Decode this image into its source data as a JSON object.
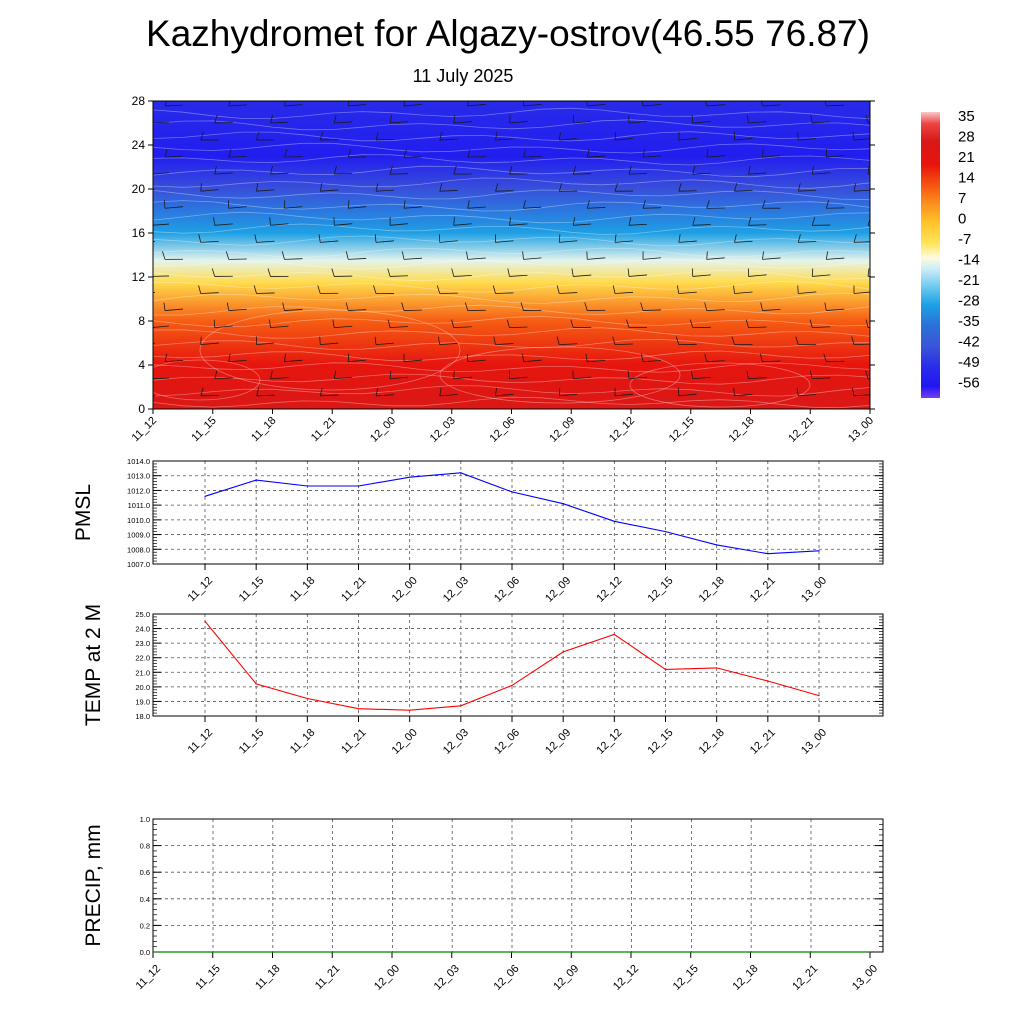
{
  "title": "Kazhydromet for Algazy-ostrov(46.55 76.87)",
  "subtitle": "11 July 2025",
  "chart_data": [
    {
      "type": "heatmap",
      "name": "temperature-wind-cross-section",
      "x_ticks": [
        "11_12",
        "11_15",
        "11_18",
        "11_21",
        "12_00",
        "12_03",
        "12_06",
        "12_09",
        "12_12",
        "12_15",
        "12_18",
        "12_21",
        "13_00"
      ],
      "ylim": [
        0,
        28
      ],
      "y_ticks": [
        0,
        4,
        8,
        12,
        16,
        20,
        24,
        28
      ],
      "colorbar_labels": [
        "35",
        "28",
        "21",
        "14",
        "7",
        "0",
        "-7",
        "-14",
        "-21",
        "-28",
        "-35",
        "-42",
        "-49",
        "-56"
      ],
      "colorbar_stops": [
        {
          "v": 38,
          "color": "#f9c8c8"
        },
        {
          "v": 34,
          "color": "#ee4444"
        },
        {
          "v": 28,
          "color": "#d81818"
        },
        {
          "v": 20,
          "color": "#e8140c"
        },
        {
          "v": 14,
          "color": "#f44a10"
        },
        {
          "v": 7,
          "color": "#fb8c1c"
        },
        {
          "v": 0,
          "color": "#ffc42a"
        },
        {
          "v": -7,
          "color": "#ffe45a"
        },
        {
          "v": -12,
          "color": "#fffbe0"
        },
        {
          "v": -16,
          "color": "#c9ecf8"
        },
        {
          "v": -22,
          "color": "#6cc9f0"
        },
        {
          "v": -28,
          "color": "#1ea0e4"
        },
        {
          "v": -35,
          "color": "#2a72d8"
        },
        {
          "v": -42,
          "color": "#3a56d8"
        },
        {
          "v": -49,
          "color": "#2a2ee8"
        },
        {
          "v": -56,
          "color": "#1f16f2"
        },
        {
          "v": -60,
          "color": "#7a3cf0"
        }
      ],
      "temperature_profile": [
        {
          "h": 0,
          "t": 27
        },
        {
          "h": 4,
          "t": 21
        },
        {
          "h": 8,
          "t": 12
        },
        {
          "h": 11.5,
          "t": -5
        },
        {
          "h": 13.5,
          "t": -14
        },
        {
          "h": 16,
          "t": -28
        },
        {
          "h": 20,
          "t": -43
        },
        {
          "h": 23,
          "t": -54
        },
        {
          "h": 28,
          "t": -50
        }
      ],
      "wind_barbs": true
    },
    {
      "type": "line",
      "name": "pmsl",
      "ylabel": "PMSL",
      "ylim": [
        1007.0,
        1014.0
      ],
      "y_ticks": [
        "1007.0",
        "1008.0",
        "1009.0",
        "1010.0",
        "1011.0",
        "1012.0",
        "1013.0",
        "1014.0"
      ],
      "x_ticks": [
        "11_12",
        "11_15",
        "11_18",
        "11_21",
        "12_00",
        "12_03",
        "12_06",
        "12_09",
        "12_12",
        "12_15",
        "12_18",
        "12_21",
        "13_00"
      ],
      "values": [
        1011.6,
        1012.7,
        1012.3,
        1012.3,
        1012.9,
        1013.2,
        1011.9,
        1011.1,
        1009.9,
        1009.2,
        1008.3,
        1007.7,
        1007.9
      ],
      "color": "#0000ff",
      "grid": true
    },
    {
      "type": "line",
      "name": "temp-2m",
      "ylabel": "TEMP at 2 M",
      "ylim": [
        18.0,
        25.0
      ],
      "y_ticks": [
        "18.0",
        "19.0",
        "20.0",
        "21.0",
        "22.0",
        "23.0",
        "24.0",
        "25.0"
      ],
      "x_ticks": [
        "11_12",
        "11_15",
        "11_18",
        "11_21",
        "12_00",
        "12_03",
        "12_06",
        "12_09",
        "12_12",
        "12_15",
        "12_18",
        "12_21",
        "13_00"
      ],
      "values": [
        24.5,
        20.2,
        19.2,
        18.5,
        18.4,
        18.7,
        20.1,
        22.4,
        23.6,
        21.2,
        21.3,
        20.4,
        19.4
      ],
      "color": "#ff0000",
      "grid": true
    },
    {
      "type": "line",
      "name": "precip",
      "ylabel": "PRECIP, mm",
      "ylim": [
        0.0,
        1.0
      ],
      "y_ticks": [
        "0.0",
        "0.2",
        "0.4",
        "0.6",
        "0.8",
        "1.0"
      ],
      "x_ticks": [
        "11_12",
        "11_15",
        "11_18",
        "11_21",
        "12_00",
        "12_03",
        "12_06",
        "12_09",
        "12_12",
        "12_15",
        "12_18",
        "12_21",
        "13_00"
      ],
      "values": [
        0,
        0,
        0,
        0,
        0,
        0,
        0,
        0,
        0,
        0,
        0,
        0,
        0
      ],
      "color": "#008000",
      "grid": true
    }
  ]
}
